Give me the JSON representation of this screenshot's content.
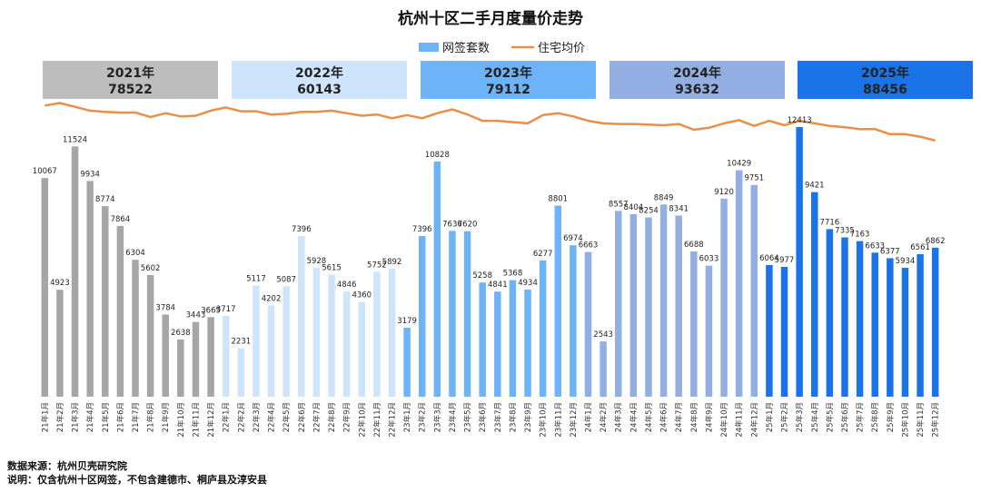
{
  "chart_data": {
    "type": "bar+line",
    "title": "杭州十区二手月度量价走势",
    "legend": {
      "bars": "网签套数",
      "line": "住宅均价",
      "position": "top-center"
    },
    "year_totals": [
      {
        "year": "2021年",
        "total": "78522",
        "color": "#bdbdbd"
      },
      {
        "year": "2022年",
        "total": "60143",
        "color": "#cde4fb"
      },
      {
        "year": "2023年",
        "total": "79112",
        "color": "#6db3f7"
      },
      {
        "year": "2024年",
        "total": "93632",
        "color": "#93aee2"
      },
      {
        "year": "2025年",
        "total": "88456",
        "color": "#1a73e8"
      }
    ],
    "bar_colors": [
      "#a6a6a6",
      "#cde4fb",
      "#6db3f7",
      "#93aee2",
      "#1a73e8"
    ],
    "line_color": "#e8904a",
    "ylim": [
      0,
      13000
    ],
    "categories": [
      "21年1月",
      "21年2月",
      "21年3月",
      "21年4月",
      "21年5月",
      "21年6月",
      "21年7月",
      "21年8月",
      "21年9月",
      "21年10月",
      "21年11月",
      "21年12月",
      "22年1月",
      "22年2月",
      "22年3月",
      "22年4月",
      "22年5月",
      "22年6月",
      "22年7月",
      "22年8月",
      "22年9月",
      "22年10月",
      "22年11月",
      "22年12月",
      "23年1月",
      "23年2月",
      "23年3月",
      "23年4月",
      "23年5月",
      "23年6月",
      "23年7月",
      "23年8月",
      "23年9月",
      "23年10月",
      "23年11月",
      "23年12月",
      "24年1月",
      "24年2月",
      "24年3月",
      "24年4月",
      "24年5月",
      "24年6月",
      "24年7月",
      "24年8月",
      "24年9月",
      "24年10月",
      "24年11月",
      "24年12月",
      "25年1月",
      "25年2月",
      "25年3月",
      "25年4月",
      "25年5月",
      "25年6月",
      "25年7月",
      "25年8月",
      "25年9月",
      "25年10月",
      "25年11月",
      "25年12月"
    ],
    "series": [
      {
        "name": "网签套数",
        "type": "bar",
        "values": [
          10067,
          4923,
          11524,
          9934,
          8774,
          7864,
          6304,
          5602,
          3784,
          2638,
          3443,
          3665,
          3717,
          2231,
          5117,
          4202,
          5087,
          7396,
          5928,
          5615,
          4846,
          4360,
          5752,
          5892,
          3179,
          7396,
          10828,
          7636,
          7620,
          5258,
          4841,
          5368,
          4934,
          6277,
          8801,
          6974,
          6663,
          2543,
          8557,
          8404,
          8254,
          8849,
          8341,
          6688,
          6033,
          9120,
          10429,
          9751,
          6064,
          5977,
          12413,
          9421,
          7716,
          7335,
          7163,
          6633,
          6377,
          5934,
          6561,
          6862
        ]
      },
      {
        "name": "住宅均价",
        "type": "line",
        "unit": "relative",
        "values": [
          0.955,
          0.975,
          0.945,
          0.915,
          0.905,
          0.9,
          0.9,
          0.865,
          0.895,
          0.87,
          0.875,
          0.915,
          0.94,
          0.91,
          0.91,
          0.885,
          0.89,
          0.905,
          0.905,
          0.915,
          0.895,
          0.875,
          0.885,
          0.855,
          0.88,
          0.855,
          0.895,
          0.925,
          0.885,
          0.835,
          0.835,
          0.825,
          0.815,
          0.88,
          0.895,
          0.87,
          0.835,
          0.815,
          0.81,
          0.81,
          0.805,
          0.8,
          0.81,
          0.765,
          0.78,
          0.815,
          0.84,
          0.795,
          0.835,
          0.8,
          0.835,
          0.815,
          0.795,
          0.785,
          0.77,
          0.77,
          0.73,
          0.73,
          0.71,
          0.68
        ]
      }
    ]
  },
  "footer": {
    "source": "数据来源：杭州贝壳研究院",
    "note": "说明：仅含杭州十区网签，不包含建德市、桐庐县及淳安县"
  }
}
